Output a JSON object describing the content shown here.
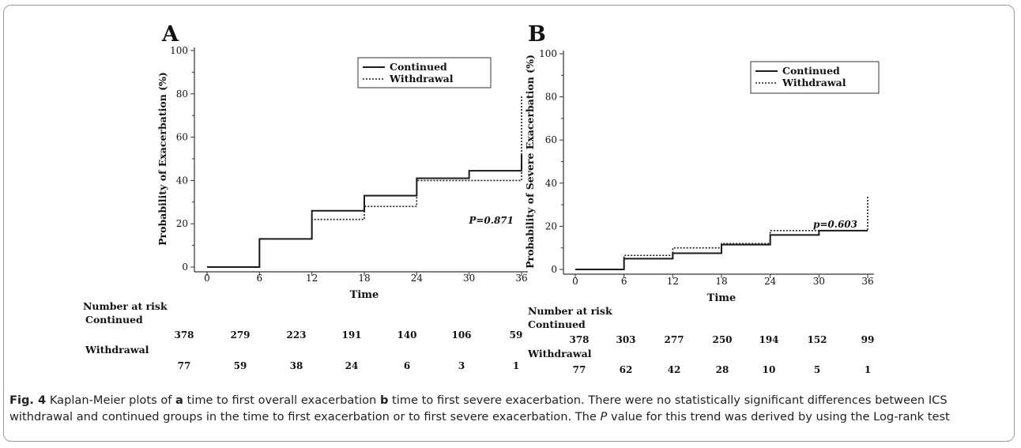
{
  "chart_data": [
    {
      "type": "line",
      "step": true,
      "panel_label": "A",
      "xlabel": "Time",
      "ylabel": "Probability of Exacerbation  (%)",
      "xlim": [
        0,
        36
      ],
      "ylim": [
        0,
        100
      ],
      "x_ticks": [
        "0",
        "6",
        "12",
        "18",
        "24",
        "30",
        "36"
      ],
      "y_ticks": [
        "0",
        "20",
        "40",
        "60",
        "80",
        "100"
      ],
      "legend_position": "top-right",
      "annotation": "P=0.871",
      "series": [
        {
          "name": "Continued",
          "style": "solid",
          "x": [
            0,
            6,
            12,
            18,
            24,
            30,
            36
          ],
          "y": [
            0,
            13,
            26,
            33,
            41,
            44.5,
            52
          ]
        },
        {
          "name": "Withdrawal",
          "style": "dotted",
          "x": [
            0,
            6,
            12,
            18,
            24,
            30,
            36
          ],
          "y": [
            0,
            13,
            22,
            28,
            40,
            40,
            79
          ]
        }
      ],
      "risk_table": {
        "title": "Number at risk",
        "groups": [
          {
            "name": "Continued",
            "values": [
              "378",
              "279",
              "223",
              "191",
              "140",
              "106",
              "59"
            ]
          },
          {
            "name": "Withdrawal",
            "values": [
              "77",
              "59",
              "38",
              "24",
              "6",
              "3",
              "1"
            ]
          }
        ]
      }
    },
    {
      "type": "line",
      "step": true,
      "panel_label": "B",
      "xlabel": "Time",
      "ylabel": "Probability of Severe Exacerbation (%)",
      "xlim": [
        0,
        36
      ],
      "ylim": [
        0,
        100
      ],
      "x_ticks": [
        "0",
        "6",
        "12",
        "18",
        "24",
        "30",
        "36"
      ],
      "y_ticks": [
        "0",
        "20",
        "40",
        "60",
        "80",
        "100"
      ],
      "legend_position": "top-right",
      "annotation": "p=0.603",
      "series": [
        {
          "name": "Continued",
          "style": "solid",
          "x": [
            0,
            6,
            12,
            18,
            24,
            30,
            36
          ],
          "y": [
            0,
            5,
            7.5,
            11.5,
            16,
            18,
            18
          ]
        },
        {
          "name": "Withdrawal",
          "style": "dotted",
          "x": [
            0,
            6,
            12,
            18,
            24,
            30,
            36
          ],
          "y": [
            0,
            6.5,
            10,
            12,
            18,
            18,
            34
          ]
        }
      ],
      "risk_table": {
        "title": "Number at risk",
        "groups": [
          {
            "name": "Continued",
            "values": [
              "378",
              "303",
              "277",
              "250",
              "194",
              "152",
              "99"
            ]
          },
          {
            "name": "Withdrawal",
            "values": [
              "77",
              "62",
              "42",
              "28",
              "10",
              "5",
              "1"
            ]
          }
        ]
      }
    }
  ],
  "caption": {
    "fig_label": "Fig. 4",
    "part1": " Kaplan-Meier plots of ",
    "a_label": "a",
    "part2": " time to first overall exacerbation ",
    "b_label": "b",
    "part3": " time to first severe exacerbation. There were no statistically significant differences between ICS withdrawal and continued groups in the time to first exacerbation or to first severe exacerbation. The ",
    "p_label": "P",
    "part4": " value for this trend was derived by using the Log-rank test"
  },
  "colors": {
    "line": "#1a1a1a",
    "axis": "#333333",
    "text": "#111111"
  }
}
